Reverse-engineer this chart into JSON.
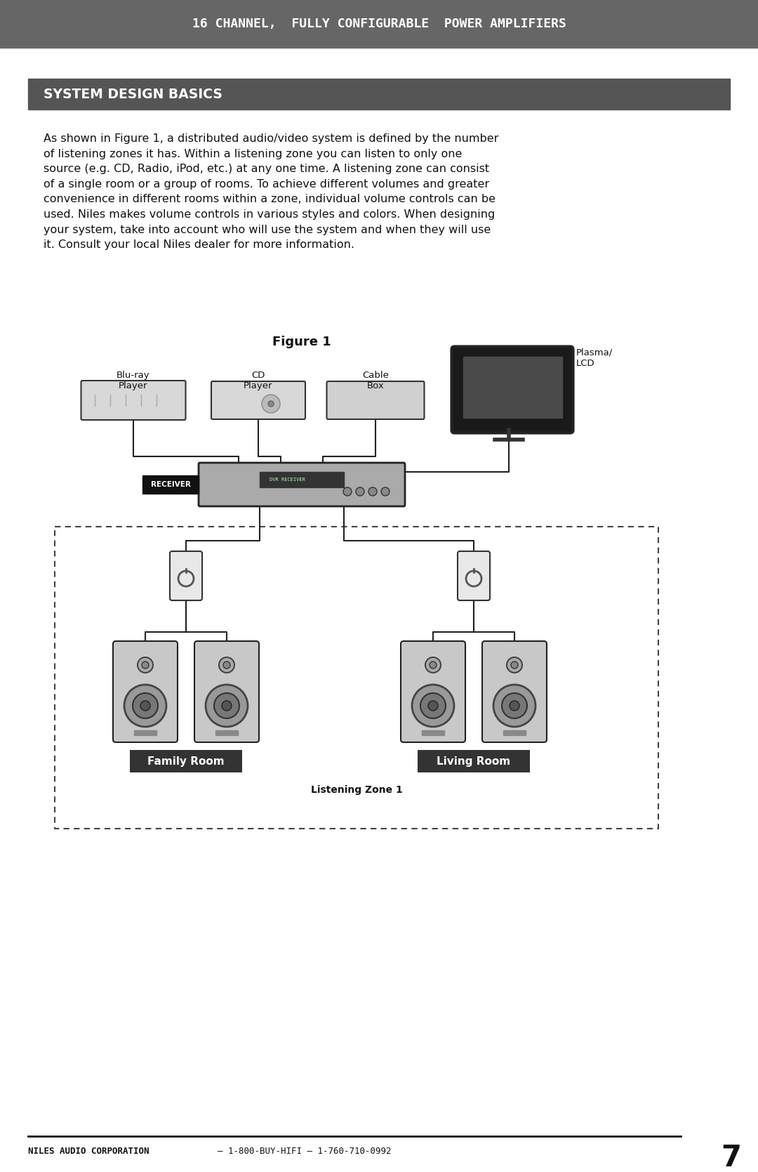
{
  "page_bg": "#ffffff",
  "header_bg": "#666666",
  "header_text": "16 CHANNEL,  FULLY CONFIGURABLE  POWER AMPLIFIERS",
  "header_text_color": "#ffffff",
  "section_bg": "#555555",
  "section_text": "SYSTEM DESIGN BASICS",
  "section_text_color": "#ffffff",
  "body_text": "As shown in Figure 1, a distributed audio/video system is defined by the number\nof listening zones it has. Within a listening zone you can listen to only one\nsource (e.g. CD, Radio, iPod, etc.) at any one time. A listening zone can consist\nof a single room or a group of rooms. To achieve different volumes and greater\nconvenience in different rooms within a zone, individual volume controls can be\nused. Niles makes volume controls in various styles and colors. When designing\nyour system, take into account who will use the system and when they will use\nit. Consult your local Niles dealer for more information.",
  "figure_title": "Figure 1",
  "footer_text_left": "NILES AUDIO CORPORATION",
  "footer_text_mid": "1-800-BUY-HIFI – 1-760-710-0992",
  "footer_page": "7",
  "family_room_label": "Family Room",
  "living_room_label": "Living Room",
  "listening_zone_label": "Listening Zone 1",
  "receiver_label": "RECEIVER",
  "device_labels": [
    "Blu-ray\nPlayer",
    "CD\nPlayer",
    "Cable\nBox",
    "Plasma/\nLCD"
  ]
}
